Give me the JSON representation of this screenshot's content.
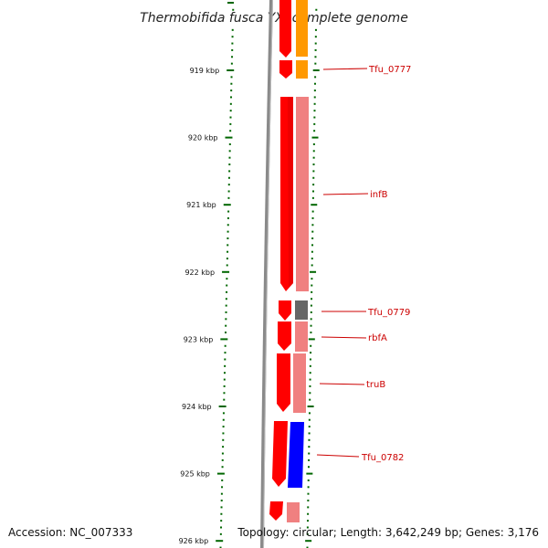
{
  "title": "Thermobifida fusca YX, complete genome",
  "footer": {
    "accession": "Accession: NC_007333",
    "summary": "Topology: circular; Length: 3,642,249 bp; Genes: 3,176"
  },
  "colors": {
    "forward_cds": "#ff0000",
    "gene_pink": "#f08080",
    "gene_orange": "#ff9900",
    "gene_gray": "#666666",
    "gene_blue": "#0000ff",
    "backbone": "#888888",
    "tick_green": "#006600",
    "label_red": "#cc0000"
  },
  "scale": {
    "ticks": [
      {
        "label": "919 kbp"
      },
      {
        "label": "920 kbp"
      },
      {
        "label": "921 kbp"
      },
      {
        "label": "922 kbp"
      },
      {
        "label": "923 kbp"
      },
      {
        "label": "924 kbp"
      },
      {
        "label": "925 kbp"
      },
      {
        "label": "926 kbp"
      }
    ]
  },
  "genes": [
    {
      "name": "Tfu_0777",
      "pair_color": "orange"
    },
    {
      "name": "infB",
      "pair_color": "pink"
    },
    {
      "name": "Tfu_0779",
      "pair_color": "gray"
    },
    {
      "name": "rbfA",
      "pair_color": "pink"
    },
    {
      "name": "truB",
      "pair_color": "pink"
    },
    {
      "name": "Tfu_0782",
      "pair_color": "blue"
    }
  ]
}
